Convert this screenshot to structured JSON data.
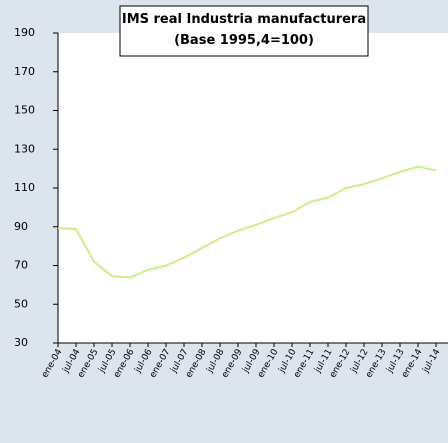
{
  "chart_data": {
    "type": "line",
    "title": "IMS real Industria manufacturera",
    "subtitle": "(Base 1995,4=100)",
    "categories": [
      "ene-04",
      "jul-04",
      "ene-05",
      "jul-05",
      "ene-06",
      "jul-06",
      "ene-07",
      "jul-07",
      "ene-08",
      "jul-08",
      "ene-09",
      "jul-09",
      "ene-10",
      "jul-10",
      "ene-11",
      "jul-11",
      "ene-12",
      "jul-12",
      "ene-13",
      "jul-13",
      "ene-14",
      "jul-14"
    ],
    "series": [
      {
        "name": "IMS real",
        "color": "#ccee88",
        "values": [
          89.4,
          88.8,
          72,
          64.5,
          63.8,
          67.7,
          70,
          74,
          79,
          84,
          88,
          91,
          94.5,
          97.5,
          102.8,
          105,
          110,
          112,
          115,
          118.3,
          121,
          119
        ]
      }
    ],
    "ylim": [
      30,
      190
    ],
    "yticks": [
      30,
      50,
      70,
      90,
      110,
      130,
      150,
      170,
      190
    ]
  }
}
